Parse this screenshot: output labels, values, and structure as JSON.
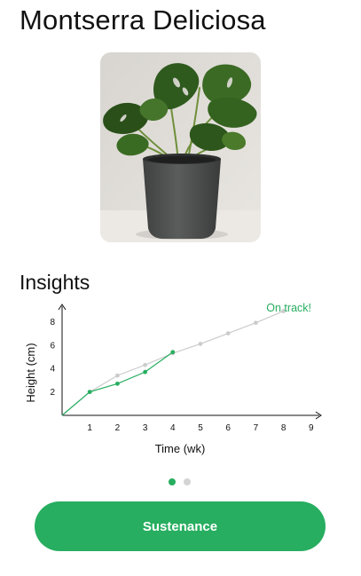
{
  "page": {
    "title": "Montserra Deliciosa",
    "insights_title": "Insights",
    "primary_button_label": "Sustenance"
  },
  "colors": {
    "accent": "#27ae60",
    "projection": "#cccccc",
    "dot_inactive": "#d4d4d4"
  },
  "image": {
    "alt": "monstera-plant-in-gray-pot"
  },
  "pager": {
    "count": 2,
    "active_index": 0
  },
  "chart_data": {
    "type": "line",
    "title": "",
    "status_label": "On track!",
    "xlabel": "Time (wk)",
    "ylabel": "Height (cm)",
    "xlim": [
      0,
      9
    ],
    "ylim": [
      0,
      10
    ],
    "x_ticks": [
      1,
      2,
      3,
      4,
      5,
      6,
      7,
      8,
      9
    ],
    "y_ticks": [
      2,
      4,
      6,
      8
    ],
    "grid": false,
    "series": [
      {
        "role": "projected",
        "color": "#cccccc",
        "x": [
          0,
          1,
          2,
          3,
          4,
          5,
          6,
          7,
          8
        ],
        "y": [
          0,
          2.0,
          3.4,
          4.3,
          5.3,
          6.1,
          7.0,
          7.9,
          8.9
        ]
      },
      {
        "role": "actual",
        "color": "#27ae60",
        "x": [
          0,
          1,
          2,
          3,
          4
        ],
        "y": [
          0,
          2.0,
          2.7,
          3.7,
          5.4
        ]
      }
    ]
  }
}
